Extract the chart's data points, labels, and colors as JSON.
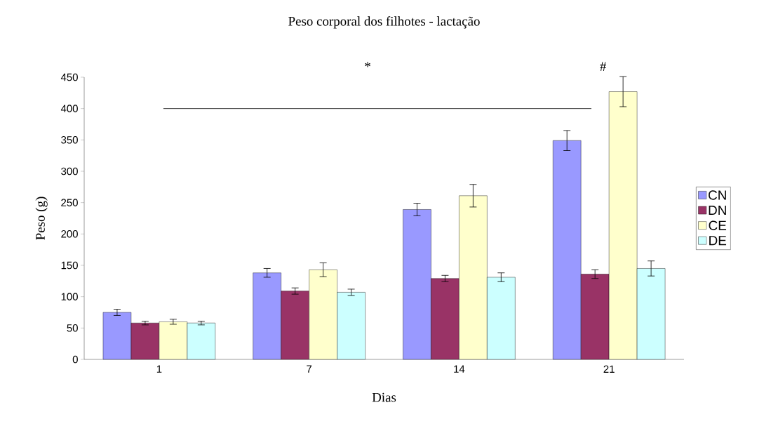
{
  "chart_data": {
    "type": "bar",
    "title": "Peso corporal dos filhotes - lactação",
    "xlabel": "Dias",
    "ylabel": "Peso (g)",
    "categories": [
      "1",
      "7",
      "14",
      "21"
    ],
    "series": [
      {
        "name": "CN",
        "color": "#9999ff",
        "values": [
          75,
          138,
          239,
          349
        ],
        "errors": [
          5,
          7,
          10,
          16
        ]
      },
      {
        "name": "DN",
        "color": "#993366",
        "values": [
          58,
          109,
          129,
          136
        ],
        "errors": [
          3,
          5,
          5,
          7
        ]
      },
      {
        "name": "CE",
        "color": "#ffffcc",
        "values": [
          60,
          143,
          261,
          427
        ],
        "errors": [
          4,
          11,
          18,
          24
        ]
      },
      {
        "name": "DE",
        "color": "#ccffff",
        "values": [
          58,
          107,
          131,
          145
        ],
        "errors": [
          3,
          5,
          7,
          12
        ]
      }
    ],
    "ylim": [
      0,
      450
    ],
    "yticks": [
      0,
      50,
      100,
      150,
      200,
      250,
      300,
      350,
      400,
      450
    ],
    "annotations": [
      "*",
      "#"
    ],
    "legend": "right"
  }
}
